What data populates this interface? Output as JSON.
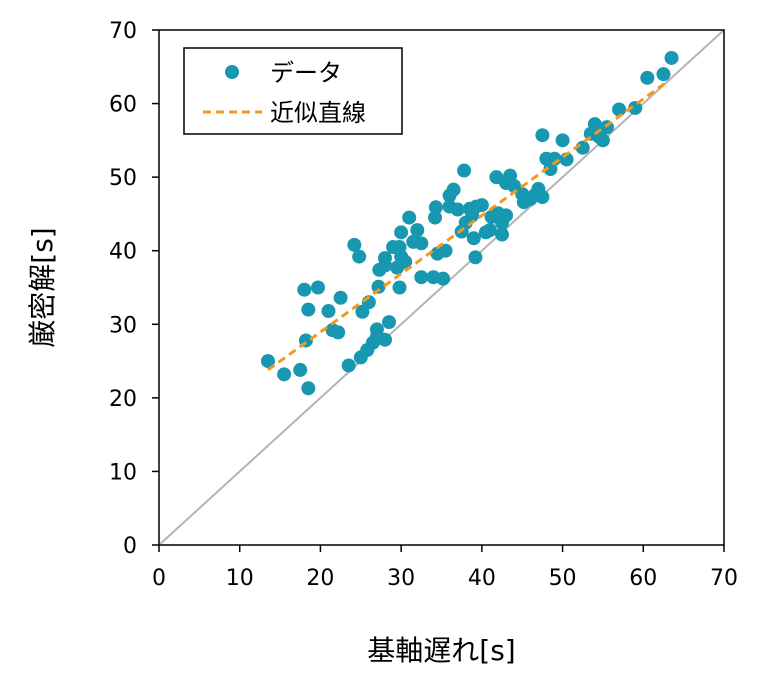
{
  "chart_data": {
    "type": "scatter",
    "xlabel": "基軸遅れ[s]",
    "ylabel": "厳密解[s]",
    "xlim": [
      0,
      70
    ],
    "ylim": [
      0,
      70
    ],
    "xticks": [
      "0",
      "10",
      "20",
      "30",
      "40",
      "50",
      "60",
      "70"
    ],
    "yticks": [
      "0",
      "10",
      "20",
      "30",
      "40",
      "50",
      "60",
      "70"
    ],
    "grid": false,
    "legend_position": "top-left",
    "colors": {
      "data": "#1798b0",
      "fit": "#f39a1e",
      "reference": "#b4b4b4"
    },
    "series": [
      {
        "name": "データ",
        "kind": "scatter",
        "points": [
          [
            13.5,
            25.0
          ],
          [
            15.5,
            23.2
          ],
          [
            17.5,
            23.8
          ],
          [
            18.0,
            34.7
          ],
          [
            18.2,
            27.8
          ],
          [
            18.5,
            32.0
          ],
          [
            18.5,
            21.3
          ],
          [
            19.7,
            35.0
          ],
          [
            21.0,
            31.8
          ],
          [
            21.5,
            29.2
          ],
          [
            22.2,
            28.9
          ],
          [
            22.5,
            33.6
          ],
          [
            23.5,
            24.4
          ],
          [
            24.2,
            40.8
          ],
          [
            24.8,
            39.2
          ],
          [
            25.0,
            25.5
          ],
          [
            25.2,
            31.7
          ],
          [
            25.8,
            26.5
          ],
          [
            26.0,
            33.0
          ],
          [
            26.5,
            27.5
          ],
          [
            27.0,
            28.3
          ],
          [
            27.0,
            29.3
          ],
          [
            27.2,
            35.1
          ],
          [
            27.3,
            37.4
          ],
          [
            28.0,
            39.0
          ],
          [
            28.0,
            38.0
          ],
          [
            28.0,
            27.9
          ],
          [
            28.5,
            30.3
          ],
          [
            29.0,
            40.5
          ],
          [
            29.5,
            37.7
          ],
          [
            29.8,
            40.5
          ],
          [
            29.8,
            35.0
          ],
          [
            30.0,
            42.5
          ],
          [
            30.0,
            39.2
          ],
          [
            30.5,
            38.5
          ],
          [
            31.0,
            44.5
          ],
          [
            31.5,
            41.2
          ],
          [
            32.0,
            42.8
          ],
          [
            32.5,
            36.4
          ],
          [
            32.5,
            41.0
          ],
          [
            34.0,
            36.4
          ],
          [
            34.2,
            44.5
          ],
          [
            34.3,
            45.9
          ],
          [
            34.5,
            39.6
          ],
          [
            35.2,
            36.2
          ],
          [
            35.5,
            40.0
          ],
          [
            36.0,
            46.0
          ],
          [
            36.0,
            47.5
          ],
          [
            36.5,
            48.3
          ],
          [
            37.0,
            45.6
          ],
          [
            37.5,
            42.6
          ],
          [
            37.8,
            50.9
          ],
          [
            38.0,
            43.8
          ],
          [
            38.5,
            45.7
          ],
          [
            38.8,
            44.8
          ],
          [
            39.0,
            41.7
          ],
          [
            39.2,
            39.1
          ],
          [
            39.3,
            46.0
          ],
          [
            40.0,
            46.2
          ],
          [
            40.5,
            42.5
          ],
          [
            41.0,
            42.8
          ],
          [
            41.2,
            44.6
          ],
          [
            41.8,
            50.0
          ],
          [
            42.0,
            45.1
          ],
          [
            42.5,
            43.8
          ],
          [
            42.5,
            42.2
          ],
          [
            43.0,
            49.2
          ],
          [
            43.0,
            44.8
          ],
          [
            43.5,
            50.2
          ],
          [
            44.0,
            48.8
          ],
          [
            45.0,
            47.7
          ],
          [
            45.2,
            46.6
          ],
          [
            45.5,
            47.2
          ],
          [
            46.0,
            47.0
          ],
          [
            46.5,
            47.5
          ],
          [
            47.0,
            48.4
          ],
          [
            47.5,
            47.3
          ],
          [
            47.5,
            55.7
          ],
          [
            48.0,
            52.5
          ],
          [
            48.5,
            51.1
          ],
          [
            49.0,
            52.5
          ],
          [
            50.0,
            55.0
          ],
          [
            50.5,
            52.4
          ],
          [
            52.5,
            54.0
          ],
          [
            53.5,
            55.9
          ],
          [
            54.0,
            57.2
          ],
          [
            54.5,
            55.5
          ],
          [
            55.0,
            55.0
          ],
          [
            55.5,
            56.8
          ],
          [
            57.0,
            59.2
          ],
          [
            59.0,
            59.4
          ],
          [
            60.5,
            63.5
          ],
          [
            62.5,
            64.0
          ],
          [
            63.5,
            66.2
          ]
        ]
      },
      {
        "name": "近似直線",
        "kind": "line",
        "style": "dashed",
        "points": [
          [
            13.5,
            23.8
          ],
          [
            63.0,
            63.0
          ]
        ]
      }
    ],
    "reference_line": {
      "kind": "line",
      "points": [
        [
          0,
          0
        ],
        [
          70,
          70
        ]
      ]
    }
  }
}
